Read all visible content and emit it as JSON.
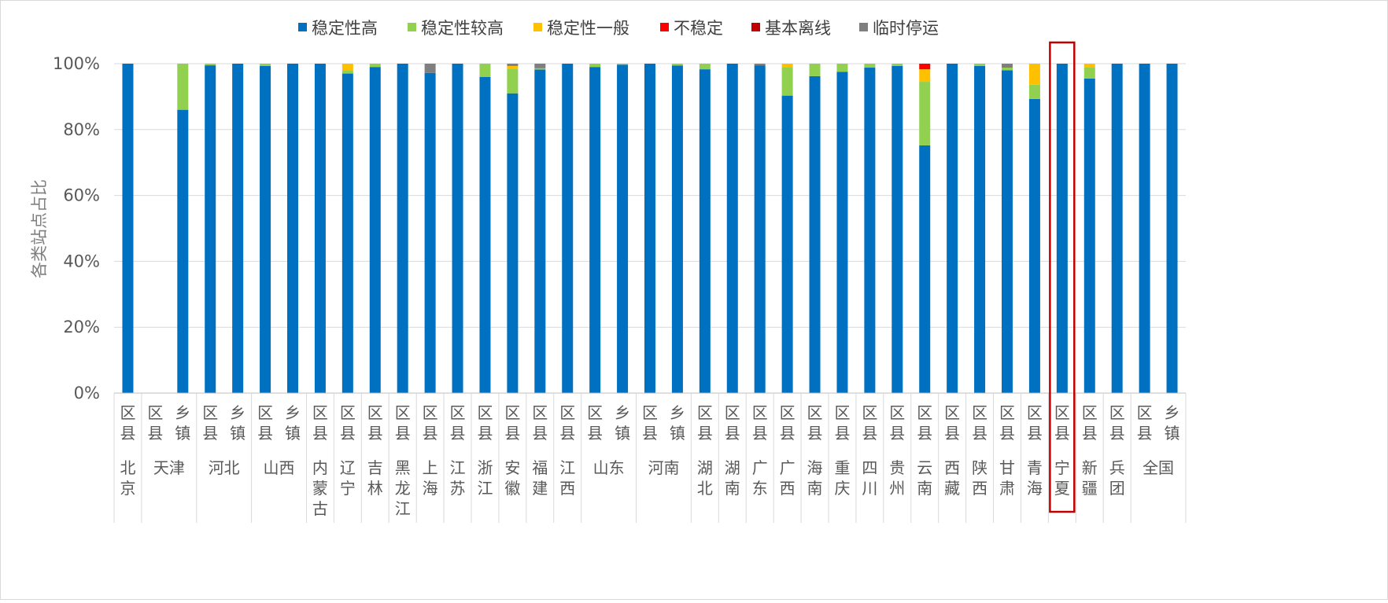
{
  "chart_data": {
    "type": "bar",
    "stacked": true,
    "ylabel": "各类站点占比",
    "ylim": [
      0,
      1
    ],
    "yticks": [
      "0%",
      "20%",
      "40%",
      "60%",
      "80%",
      "100%"
    ],
    "grid": true,
    "legend_position": "top",
    "legend": [
      "稳定性高",
      "稳定性较高",
      "稳定性一般",
      "不稳定",
      "基本离线",
      "临时停运"
    ],
    "colors": [
      "#0070c0",
      "#92d050",
      "#ffc000",
      "#ff0000",
      "#c00000",
      "#7f7f7f"
    ],
    "highlight_color": "#c00000",
    "groups": [
      {
        "province": "北京",
        "bars": [
          {
            "label": "区县",
            "values": [
              1,
              0,
              0,
              0,
              0,
              0
            ]
          }
        ]
      },
      {
        "province": "天津",
        "bars": [
          {
            "label": "区县",
            "values": [
              0,
              0,
              0,
              0,
              0,
              0
            ]
          },
          {
            "label": "乡镇",
            "values": [
              0.86,
              0.14,
              0,
              0,
              0,
              0
            ]
          }
        ]
      },
      {
        "province": "河北",
        "bars": [
          {
            "label": "区县",
            "values": [
              0.995,
              0.005,
              0,
              0,
              0,
              0
            ]
          },
          {
            "label": "乡镇",
            "values": [
              1,
              0,
              0,
              0,
              0,
              0
            ]
          }
        ]
      },
      {
        "province": "山西",
        "bars": [
          {
            "label": "区县",
            "values": [
              0.993,
              0.007,
              0,
              0,
              0,
              0
            ]
          },
          {
            "label": "乡镇",
            "values": [
              1,
              0,
              0,
              0,
              0,
              0
            ]
          }
        ]
      },
      {
        "province": "内蒙古",
        "bars": [
          {
            "label": "区县",
            "values": [
              1,
              0,
              0,
              0,
              0,
              0
            ]
          }
        ]
      },
      {
        "province": "辽宁",
        "bars": [
          {
            "label": "区县",
            "values": [
              0.97,
              0.01,
              0.02,
              0,
              0,
              0
            ]
          }
        ]
      },
      {
        "province": "吉林",
        "bars": [
          {
            "label": "区县",
            "values": [
              0.99,
              0.01,
              0,
              0,
              0,
              0
            ]
          }
        ]
      },
      {
        "province": "黑龙江",
        "bars": [
          {
            "label": "区县",
            "values": [
              1,
              0,
              0,
              0,
              0,
              0
            ]
          }
        ]
      },
      {
        "province": "上海",
        "bars": [
          {
            "label": "区县",
            "values": [
              0.972,
              0,
              0,
              0,
              0,
              0.028
            ]
          }
        ]
      },
      {
        "province": "江苏",
        "bars": [
          {
            "label": "区县",
            "values": [
              1,
              0,
              0,
              0,
              0,
              0
            ]
          }
        ]
      },
      {
        "province": "浙江",
        "bars": [
          {
            "label": "区县",
            "values": [
              0.96,
              0.04,
              0,
              0,
              0,
              0
            ]
          }
        ]
      },
      {
        "province": "安徽",
        "bars": [
          {
            "label": "区县",
            "values": [
              0.91,
              0.075,
              0.008,
              0,
              0,
              0.007
            ]
          }
        ]
      },
      {
        "province": "福建",
        "bars": [
          {
            "label": "区县",
            "values": [
              0.982,
              0.004,
              0,
              0,
              0,
              0.014
            ]
          }
        ]
      },
      {
        "province": "江西",
        "bars": [
          {
            "label": "区县",
            "values": [
              1,
              0,
              0,
              0,
              0,
              0
            ]
          }
        ]
      },
      {
        "province": "山东",
        "bars": [
          {
            "label": "区县",
            "values": [
              0.99,
              0.01,
              0,
              0,
              0,
              0
            ]
          },
          {
            "label": "乡镇",
            "values": [
              0.997,
              0.003,
              0,
              0,
              0,
              0
            ]
          }
        ]
      },
      {
        "province": "河南",
        "bars": [
          {
            "label": "区县",
            "values": [
              1,
              0,
              0,
              0,
              0,
              0
            ]
          },
          {
            "label": "乡镇",
            "values": [
              0.994,
              0.006,
              0,
              0,
              0,
              0
            ]
          }
        ]
      },
      {
        "province": "湖北",
        "bars": [
          {
            "label": "区县",
            "values": [
              0.983,
              0.017,
              0,
              0,
              0,
              0
            ]
          }
        ]
      },
      {
        "province": "湖南",
        "bars": [
          {
            "label": "区县",
            "values": [
              1,
              0,
              0,
              0,
              0,
              0
            ]
          }
        ]
      },
      {
        "province": "广东",
        "bars": [
          {
            "label": "区县",
            "values": [
              0.995,
              0,
              0,
              0,
              0,
              0.005
            ]
          }
        ]
      },
      {
        "province": "广西",
        "bars": [
          {
            "label": "区县",
            "values": [
              0.903,
              0.087,
              0.01,
              0,
              0,
              0
            ]
          }
        ]
      },
      {
        "province": "海南",
        "bars": [
          {
            "label": "区县",
            "values": [
              0.962,
              0.038,
              0,
              0,
              0,
              0
            ]
          }
        ]
      },
      {
        "province": "重庆",
        "bars": [
          {
            "label": "区县",
            "values": [
              0.975,
              0.025,
              0,
              0,
              0,
              0
            ]
          }
        ]
      },
      {
        "province": "四川",
        "bars": [
          {
            "label": "区县",
            "values": [
              0.988,
              0.012,
              0,
              0,
              0,
              0
            ]
          }
        ]
      },
      {
        "province": "贵州",
        "bars": [
          {
            "label": "区县",
            "values": [
              0.993,
              0.007,
              0,
              0,
              0,
              0
            ]
          }
        ]
      },
      {
        "province": "云南",
        "bars": [
          {
            "label": "区县",
            "values": [
              0.752,
              0.193,
              0.038,
              0.017,
              0,
              0
            ]
          }
        ]
      },
      {
        "province": "西藏",
        "bars": [
          {
            "label": "区县",
            "values": [
              1,
              0,
              0,
              0,
              0,
              0
            ]
          }
        ]
      },
      {
        "province": "陕西",
        "bars": [
          {
            "label": "区县",
            "values": [
              0.993,
              0.007,
              0,
              0,
              0,
              0
            ]
          }
        ]
      },
      {
        "province": "甘肃",
        "bars": [
          {
            "label": "区县",
            "values": [
              0.98,
              0.008,
              0,
              0,
              0,
              0.012
            ]
          }
        ]
      },
      {
        "province": "青海",
        "bars": [
          {
            "label": "区县",
            "values": [
              0.893,
              0.043,
              0.064,
              0,
              0,
              0
            ]
          }
        ]
      },
      {
        "province": "宁夏",
        "highlight": true,
        "bars": [
          {
            "label": "区县",
            "values": [
              1,
              0,
              0,
              0,
              0,
              0
            ]
          }
        ]
      },
      {
        "province": "新疆",
        "bars": [
          {
            "label": "区县",
            "values": [
              0.955,
              0.033,
              0.012,
              0,
              0,
              0
            ]
          }
        ]
      },
      {
        "province": "兵团",
        "bars": [
          {
            "label": "区县",
            "values": [
              1,
              0,
              0,
              0,
              0,
              0
            ]
          }
        ]
      },
      {
        "province": "全国",
        "bars": [
          {
            "label": "区县",
            "values": [
              1,
              0,
              0,
              0,
              0,
              0
            ]
          },
          {
            "label": "乡镇",
            "values": [
              1,
              0,
              0,
              0,
              0,
              0
            ]
          }
        ]
      }
    ]
  }
}
